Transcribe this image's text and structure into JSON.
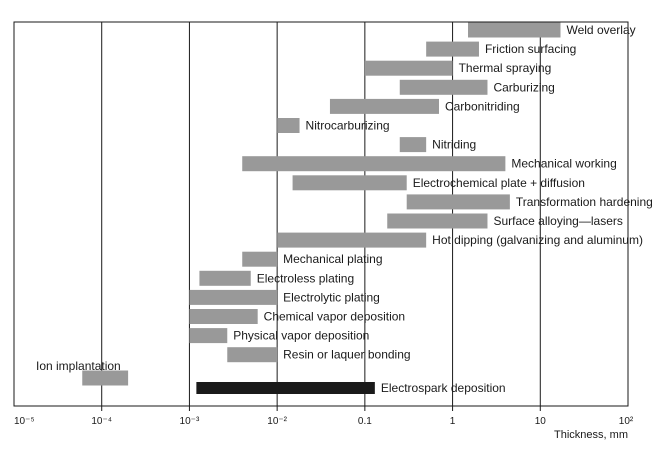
{
  "chart_data": {
    "type": "bar",
    "orientation": "horizontal-range",
    "xscale": "log",
    "xlim": [
      1e-05,
      100
    ],
    "xlabel": "Thickness, mm",
    "grid": "vertical major lines",
    "xticks": [
      {
        "value": 1e-05,
        "label": "10⁻⁵"
      },
      {
        "value": 0.0001,
        "label": "10⁻⁴"
      },
      {
        "value": 0.001,
        "label": "10⁻³"
      },
      {
        "value": 0.01,
        "label": "10⁻²"
      },
      {
        "value": 0.1,
        "label": "0.1"
      },
      {
        "value": 1,
        "label": "1"
      },
      {
        "value": 10,
        "label": "10"
      },
      {
        "value": 100,
        "label": "10²"
      }
    ],
    "colors": {
      "bar": "#999999",
      "highlight": "#1a1a1a",
      "grid": "#1a1a1a"
    },
    "bars": [
      {
        "name": "Weld overlay",
        "min": 1.5,
        "max": 17
      },
      {
        "name": "Friction surfacing",
        "min": 0.5,
        "max": 2
      },
      {
        "name": "Thermal spraying",
        "min": 0.1,
        "max": 1
      },
      {
        "name": "Carburizing",
        "min": 0.25,
        "max": 2.5
      },
      {
        "name": "Carbonitriding",
        "min": 0.04,
        "max": 0.7
      },
      {
        "name": "Nitrocarburizing",
        "min": 0.01,
        "max": 0.018
      },
      {
        "name": "Nitriding",
        "min": 0.25,
        "max": 0.5
      },
      {
        "name": "Mechanical working",
        "min": 0.004,
        "max": 4
      },
      {
        "name": "Electrochemical plate + diffusion",
        "min": 0.015,
        "max": 0.3
      },
      {
        "name": "Transformation hardening",
        "min": 0.3,
        "max": 4.5
      },
      {
        "name": "Surface alloying—lasers",
        "min": 0.18,
        "max": 2.5
      },
      {
        "name": "Hot dipping (galvanizing and aluminum)",
        "min": 0.01,
        "max": 0.5
      },
      {
        "name": "Mechanical plating",
        "min": 0.004,
        "max": 0.01
      },
      {
        "name": "Electroless plating",
        "min": 0.0013,
        "max": 0.005
      },
      {
        "name": "Electrolytic plating",
        "min": 0.001,
        "max": 0.01
      },
      {
        "name": "Chemical vapor deposition",
        "min": 0.001,
        "max": 0.006
      },
      {
        "name": "Physical vapor deposition",
        "min": 0.001,
        "max": 0.0027
      },
      {
        "name": "Resin or laquer bonding",
        "min": 0.0027,
        "max": 0.01
      },
      {
        "name": "Ion implantation",
        "min": 6e-05,
        "max": 0.0002
      },
      {
        "name": "Electrospark deposition",
        "min": 0.0012,
        "max": 0.13,
        "highlight": true
      }
    ]
  }
}
